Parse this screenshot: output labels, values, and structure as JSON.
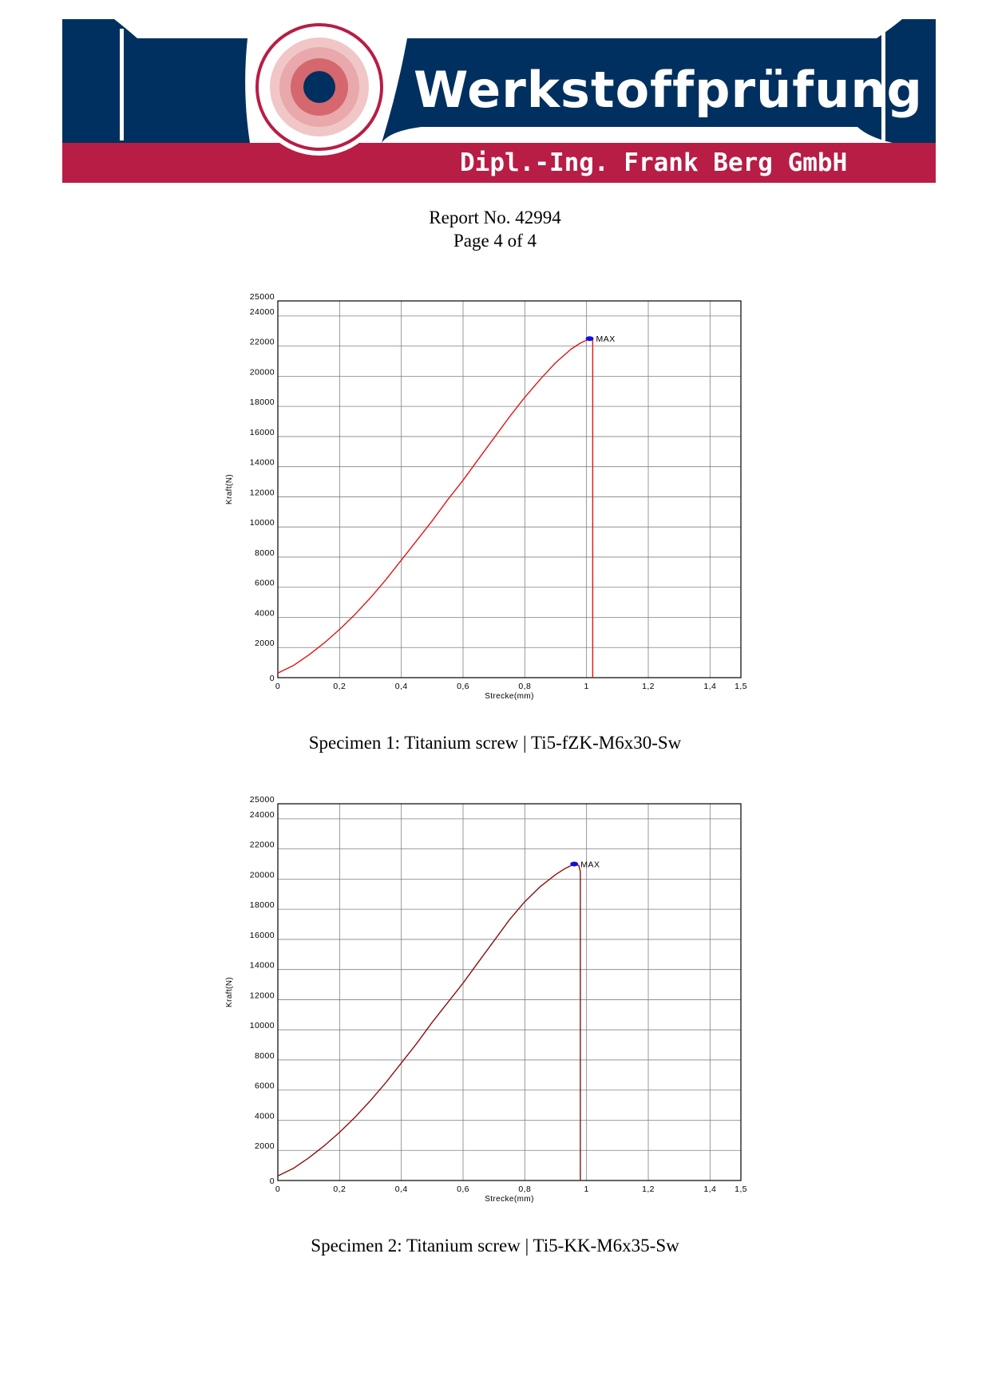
{
  "header": {
    "company_name": "Werkstoffprüfung",
    "company_subtitle": "Dipl.-Ing. Frank Berg GmbH",
    "colors": {
      "navy": "#00305f",
      "crimson": "#b81d45",
      "ring_light": "#e9a8ab",
      "ring_mid": "#d4686e"
    }
  },
  "report": {
    "number": "Report No. 42994",
    "page": "Page 4 of 4"
  },
  "chart_data": [
    {
      "type": "line",
      "caption": "Specimen 1: Titanium screw | Ti5-fZK-M6x30-Sw",
      "xlabel": "Strecke(mm)",
      "ylabel": "Kraft(N)",
      "xlim": [
        0,
        1.5
      ],
      "ylim": [
        0,
        25000
      ],
      "x_ticks": [
        "0",
        "0,2",
        "0,4",
        "0,6",
        "0,8",
        "1",
        "1,2",
        "1,4",
        "1,5"
      ],
      "y_ticks": [
        "0",
        "2000",
        "4000",
        "6000",
        "8000",
        "10000",
        "12000",
        "14000",
        "16000",
        "18000",
        "20000",
        "22000",
        "24000",
        "25000"
      ],
      "grid": true,
      "series": [
        {
          "color": "#e31414",
          "x": [
            0,
            0.05,
            0.1,
            0.15,
            0.2,
            0.25,
            0.3,
            0.35,
            0.4,
            0.45,
            0.5,
            0.55,
            0.6,
            0.65,
            0.7,
            0.75,
            0.8,
            0.85,
            0.9,
            0.95,
            0.98,
            1.0,
            1.01,
            1.01,
            1.02,
            1.02
          ],
          "y": [
            300,
            800,
            1500,
            2300,
            3200,
            4200,
            5300,
            6500,
            7800,
            9100,
            10400,
            11800,
            13100,
            14500,
            15900,
            17300,
            18600,
            19800,
            20900,
            21800,
            22200,
            22400,
            22500,
            22400,
            22400,
            0
          ]
        }
      ],
      "max_marker": {
        "label": "MAX",
        "x": 1.01,
        "y": 22500,
        "color": "#1010e0"
      }
    },
    {
      "type": "line",
      "caption": "Specimen 2: Titanium screw | Ti5-KK-M6x35-Sw",
      "xlabel": "Strecke(mm)",
      "ylabel": "Kraft(N)",
      "xlim": [
        0,
        1.5
      ],
      "ylim": [
        0,
        25000
      ],
      "x_ticks": [
        "0",
        "0,2",
        "0,4",
        "0,6",
        "0,8",
        "1",
        "1,2",
        "1,4",
        "1,5"
      ],
      "y_ticks": [
        "0",
        "2000",
        "4000",
        "6000",
        "8000",
        "10000",
        "12000",
        "14000",
        "16000",
        "18000",
        "20000",
        "22000",
        "24000",
        "25000"
      ],
      "grid": true,
      "series": [
        {
          "color": "#8b1010",
          "x": [
            0,
            0.05,
            0.1,
            0.15,
            0.2,
            0.25,
            0.3,
            0.35,
            0.4,
            0.45,
            0.5,
            0.55,
            0.6,
            0.65,
            0.7,
            0.75,
            0.8,
            0.85,
            0.9,
            0.93,
            0.96,
            0.975,
            0.98,
            0.98
          ],
          "y": [
            300,
            800,
            1500,
            2300,
            3200,
            4200,
            5300,
            6500,
            7800,
            9100,
            10500,
            11800,
            13100,
            14500,
            15900,
            17300,
            18500,
            19500,
            20300,
            20700,
            21000,
            20900,
            20500,
            0
          ]
        }
      ],
      "max_marker": {
        "label": "MAX",
        "x": 0.96,
        "y": 21000,
        "color": "#1010e0"
      }
    }
  ]
}
